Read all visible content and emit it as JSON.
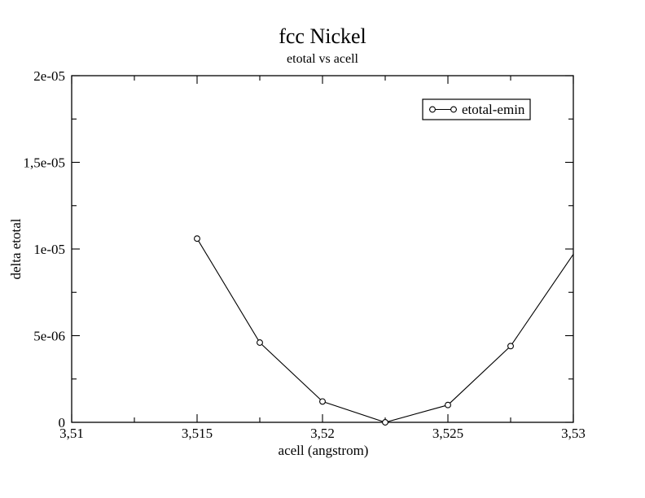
{
  "titles": {
    "title": "fcc Nickel",
    "subtitle": "etotal vs acell"
  },
  "axes": {
    "x": {
      "label": "acell (angstrom)"
    },
    "y": {
      "label": "delta etotal"
    }
  },
  "legend": {
    "label": "etotal-emin",
    "marker": "open-circle-icon"
  },
  "colors": {
    "foreground": "#000000",
    "background": "#ffffff"
  },
  "chart_data": {
    "type": "line",
    "title": "fcc Nickel",
    "subtitle": "etotal vs acell",
    "xlabel": "acell (angstrom)",
    "ylabel": "delta etotal",
    "xlim": [
      3.51,
      3.53
    ],
    "ylim": [
      0,
      2e-05
    ],
    "grid": false,
    "legend_position": "upper-right",
    "x_ticks": {
      "values": [
        3.51,
        3.515,
        3.52,
        3.525,
        3.53
      ],
      "labels": [
        "3,51",
        "3,515",
        "3,52",
        "3,525",
        "3,53"
      ],
      "minor": [
        3.5125,
        3.5175,
        3.5225,
        3.5275
      ]
    },
    "y_ticks": {
      "values": [
        0,
        5e-06,
        1e-05,
        1.5e-05,
        2e-05
      ],
      "labels": [
        "0",
        "5e-06",
        "1e-05",
        "1,5e-05",
        "2e-05"
      ],
      "minor": [
        2.5e-06,
        7.5e-06,
        1.25e-05,
        1.75e-05
      ]
    },
    "series": [
      {
        "name": "etotal-emin",
        "marker": "open-circle",
        "color": "#000000",
        "points": [
          [
            3.515,
            1.06e-05
          ],
          [
            3.5175,
            4.6e-06
          ],
          [
            3.52,
            1.2e-06
          ],
          [
            3.5225,
            0.0
          ],
          [
            3.525,
            1e-06
          ],
          [
            3.5275,
            4.4e-06
          ]
        ],
        "line_exit_point": [
          3.53,
          9.7e-06
        ]
      }
    ]
  }
}
